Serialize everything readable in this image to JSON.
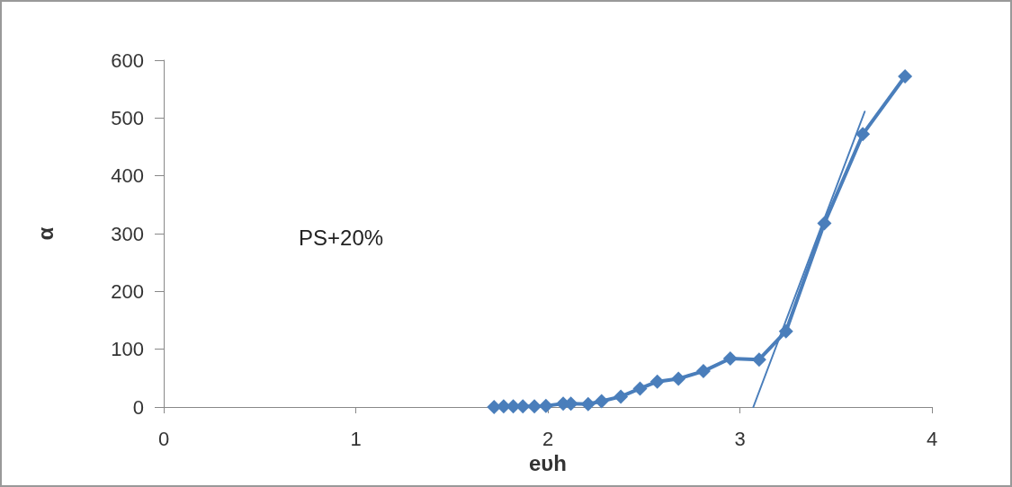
{
  "chart_data": {
    "type": "line",
    "xlabel": "eυh",
    "ylabel": "α",
    "annotations": [
      "PS+20%"
    ],
    "xlim": [
      0,
      4
    ],
    "xticks": [
      0,
      1,
      2,
      3,
      4
    ],
    "ylim": [
      0,
      600
    ],
    "yticks": [
      0,
      100,
      200,
      300,
      400,
      500,
      600
    ],
    "grid": false,
    "marker": "diamond",
    "line_style": "solid",
    "series": [
      {
        "color": "#4a7ebb",
        "x": [
          1.72,
          1.77,
          1.82,
          1.87,
          1.93,
          1.99,
          2.08,
          2.12,
          2.21,
          2.28,
          2.38,
          2.48,
          2.57,
          2.68,
          2.81,
          2.95,
          3.1,
          3.24,
          3.44,
          3.64,
          3.86
        ],
        "values": [
          0,
          1,
          1,
          1,
          1,
          2,
          6,
          6,
          5,
          10,
          18,
          32,
          44,
          49,
          62,
          84,
          82,
          131,
          318,
          472,
          572
        ]
      },
      {
        "color": "#4a7ebb",
        "type": "line",
        "marker": "none",
        "x": [
          3.07,
          3.65
        ],
        "values": [
          0,
          511
        ]
      }
    ]
  }
}
